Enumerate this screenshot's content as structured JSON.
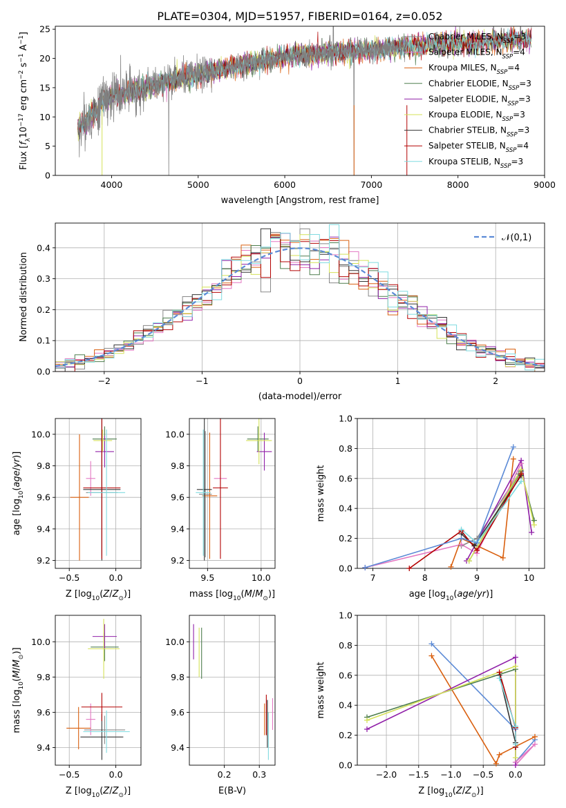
{
  "figure": {
    "title": "PLATE=0304, MJD=51957, FIBERID=0164, z=0.052"
  },
  "palette": {
    "Chabrier MILES": "#888888",
    "Salpeter MILES": "#e377c2",
    "Kroupa MILES": "#d95f0e",
    "Chabrier ELODIE": "#4d7d4d",
    "Salpeter ELODIE": "#9020a8",
    "Kroupa ELODIE": "#d4e157",
    "Chabrier STELIB": "#333333",
    "Salpeter STELIB": "#b30000",
    "Kroupa STELIB": "#7fdbe0",
    "normal": "#5b8ad6"
  },
  "models": [
    {
      "label_main": "Chabrier MILES, N",
      "sub": "SSP",
      "nssp": "=3",
      "key": "Chabrier MILES"
    },
    {
      "label_main": "Salpeter MILES, N",
      "sub": "SSP",
      "nssp": "=4",
      "key": "Salpeter MILES"
    },
    {
      "label_main": "Kroupa MILES, N",
      "sub": "SSP",
      "nssp": "=4",
      "key": "Kroupa MILES"
    },
    {
      "label_main": "Chabrier ELODIE, N",
      "sub": "SSP",
      "nssp": "=3",
      "key": "Chabrier ELODIE"
    },
    {
      "label_main": "Salpeter ELODIE, N",
      "sub": "SSP",
      "nssp": "=3",
      "key": "Salpeter ELODIE"
    },
    {
      "label_main": "Kroupa ELODIE, N",
      "sub": "SSP",
      "nssp": "=3",
      "key": "Kroupa ELODIE"
    },
    {
      "label_main": "Chabrier STELIB, N",
      "sub": "SSP",
      "nssp": "=3",
      "key": "Chabrier STELIB"
    },
    {
      "label_main": "Salpeter STELIB, N",
      "sub": "SSP",
      "nssp": "=4",
      "key": "Salpeter STELIB"
    },
    {
      "label_main": "Kroupa STELIB, N",
      "sub": "SSP",
      "nssp": "=3",
      "key": "Kroupa STELIB"
    }
  ],
  "chart_data": [
    {
      "id": "spectrum",
      "type": "line",
      "xlabel": "wavelength [Angstrom, rest frame]",
      "ylabel": "Flux [f_λ10^-17 erg cm^-2 s^-1 A^-1]",
      "xlim": [
        3350,
        9000
      ],
      "ylim": [
        0,
        25.5
      ],
      "xticks": [
        4000,
        5000,
        6000,
        7000,
        8000,
        9000
      ],
      "yticks": [
        0,
        5,
        10,
        15,
        20,
        25
      ],
      "grid": false,
      "legend": "top-right",
      "spectrum_range": [
        3610,
        7420
      ],
      "continuum_nodes": [
        [
          3610,
          8.2
        ],
        [
          3800,
          10.5
        ],
        [
          3900,
          12.8
        ],
        [
          4000,
          13.6
        ],
        [
          4200,
          14.2
        ],
        [
          4500,
          15.5
        ],
        [
          5000,
          17.2
        ],
        [
          5500,
          19.0
        ],
        [
          6000,
          20.3
        ],
        [
          6500,
          21.0
        ],
        [
          7000,
          21.4
        ],
        [
          7400,
          22.0
        ]
      ],
      "model_range": [
        3610,
        8850
      ],
      "model_tail_nodes": [
        [
          7400,
          22.0
        ],
        [
          8000,
          22.6
        ],
        [
          8500,
          23.0
        ],
        [
          8850,
          23.2
        ]
      ]
    },
    {
      "id": "residuals",
      "type": "line",
      "xlabel": "(data-model)/error",
      "ylabel": "Normed distribution",
      "xlim": [
        -2.5,
        2.5
      ],
      "ylim": [
        0,
        0.48
      ],
      "xticks": [
        -2,
        -1,
        0,
        1,
        2
      ],
      "yticks": [
        0.0,
        0.1,
        0.2,
        0.3,
        0.4
      ],
      "grid": true,
      "legend": "top-right",
      "normal_label": "𝒩(0,1)",
      "bin_width": 0.1
    },
    {
      "id": "age_vs_Z",
      "type": "scatter",
      "xlabel": "Z [log10(Z/Z⊙)]",
      "ylabel": "age [log10(age/yr)]",
      "xlim": [
        -0.65,
        0.27
      ],
      "ylim": [
        9.15,
        10.1
      ],
      "xticks": [
        -0.5,
        0.0
      ],
      "yticks": [
        9.2,
        9.4,
        9.6,
        9.8,
        10.0
      ],
      "grid": true,
      "crosses": [
        {
          "model": "Chabrier MILES",
          "x": -0.15,
          "y": 9.63,
          "dx": 0.17,
          "dy": 0.4
        },
        {
          "model": "Salpeter MILES",
          "x": -0.27,
          "y": 9.72,
          "dx": 0.05,
          "dy": 0.11
        },
        {
          "model": "Kroupa MILES",
          "x": -0.39,
          "y": 9.6,
          "dx": 0.1,
          "dy": 0.4
        },
        {
          "model": "Chabrier ELODIE",
          "x": -0.12,
          "y": 9.97,
          "dx": 0.13,
          "dy": 0.08
        },
        {
          "model": "Salpeter ELODIE",
          "x": -0.12,
          "y": 9.89,
          "dx": 0.1,
          "dy": 0.1
        },
        {
          "model": "Kroupa ELODIE",
          "x": -0.14,
          "y": 9.96,
          "dx": 0.1,
          "dy": 0.07
        },
        {
          "model": "Chabrier STELIB",
          "x": -0.15,
          "y": 9.65,
          "dx": 0.2,
          "dy": 0.45
        },
        {
          "model": "Salpeter STELIB",
          "x": -0.15,
          "y": 9.66,
          "dx": 0.2,
          "dy": 0.45
        },
        {
          "model": "Kroupa STELIB",
          "x": -0.1,
          "y": 9.63,
          "dx": 0.2,
          "dy": 0.4
        }
      ]
    },
    {
      "id": "age_vs_mass",
      "type": "scatter",
      "xlabel": "mass [log10(M/M⊙)]",
      "ylabel": "",
      "xlim": [
        9.33,
        10.13
      ],
      "ylim": [
        9.15,
        10.1
      ],
      "xticks": [
        9.5,
        10.0
      ],
      "yticks": [
        9.2,
        9.4,
        9.6,
        9.8,
        10.0
      ],
      "grid": true,
      "crosses": [
        {
          "model": "Chabrier MILES",
          "x": 9.48,
          "y": 9.62,
          "dx": 0.06,
          "dy": 0.4
        },
        {
          "model": "Salpeter MILES",
          "x": 9.62,
          "y": 9.72,
          "dx": 0.06,
          "dy": 0.12
        },
        {
          "model": "Kroupa MILES",
          "x": 9.52,
          "y": 9.61,
          "dx": 0.07,
          "dy": 0.4
        },
        {
          "model": "Chabrier ELODIE",
          "x": 9.97,
          "y": 9.97,
          "dx": 0.1,
          "dy": 0.08
        },
        {
          "model": "Salpeter ELODIE",
          "x": 10.03,
          "y": 9.89,
          "dx": 0.07,
          "dy": 0.12
        },
        {
          "model": "Kroupa ELODIE",
          "x": 9.98,
          "y": 9.96,
          "dx": 0.12,
          "dy": 0.15
        },
        {
          "model": "Chabrier STELIB",
          "x": 9.47,
          "y": 9.65,
          "dx": 0.07,
          "dy": 0.45
        },
        {
          "model": "Salpeter STELIB",
          "x": 9.62,
          "y": 9.66,
          "dx": 0.07,
          "dy": 0.45
        },
        {
          "model": "Kroupa STELIB",
          "x": 9.46,
          "y": 9.63,
          "dx": 0.07,
          "dy": 0.4
        }
      ]
    },
    {
      "id": "weight_vs_age",
      "type": "line",
      "xlabel": "age [log10(age/yr)]",
      "ylabel": "mass weight",
      "xlim": [
        6.7,
        10.3
      ],
      "ylim": [
        0,
        1.0
      ],
      "xticks": [
        7,
        8,
        9,
        10
      ],
      "yticks": [
        0.0,
        0.2,
        0.4,
        0.6,
        0.8,
        1.0
      ],
      "grid": true,
      "series": [
        {
          "model": "Chabrier MILES",
          "x": [
            8.7,
            9.0,
            9.8
          ],
          "y": [
            0.15,
            0.2,
            0.63
          ]
        },
        {
          "model": "Salpeter MILES",
          "x": [
            6.85,
            8.7,
            9.0,
            9.85
          ],
          "y": [
            0.005,
            0.16,
            0.1,
            0.7
          ]
        },
        {
          "model": "Kroupa MILES",
          "x": [
            8.5,
            8.7,
            9.5,
            9.7
          ],
          "y": [
            0.01,
            0.2,
            0.07,
            0.73
          ]
        },
        {
          "model": "Chabrier ELODIE",
          "x": [
            8.85,
            9.85,
            10.1
          ],
          "y": [
            0.05,
            0.65,
            0.32
          ]
        },
        {
          "model": "Salpeter ELODIE",
          "x": [
            8.8,
            9.85,
            10.05
          ],
          "y": [
            0.05,
            0.72,
            0.24
          ]
        },
        {
          "model": "Kroupa ELODIE",
          "x": [
            8.85,
            9.85,
            10.1
          ],
          "y": [
            0.05,
            0.66,
            0.29
          ]
        },
        {
          "model": "Chabrier STELIB",
          "x": [
            8.7,
            8.95,
            9.85
          ],
          "y": [
            0.23,
            0.15,
            0.62
          ]
        },
        {
          "model": "Salpeter STELIB",
          "x": [
            7.7,
            8.7,
            9.0,
            9.85
          ],
          "y": [
            0.0,
            0.25,
            0.12,
            0.63
          ]
        },
        {
          "model": "Kroupa STELIB",
          "x": [
            8.7,
            9.0,
            9.85
          ],
          "y": [
            0.26,
            0.17,
            0.58
          ]
        },
        {
          "model": "normal",
          "x": [
            6.85,
            8.7,
            9.0,
            9.7
          ],
          "y": [
            0.005,
            0.2,
            0.17,
            0.81
          ]
        }
      ]
    },
    {
      "id": "mass_vs_Z",
      "type": "scatter",
      "xlabel": "Z [log10(Z/Z⊙)]",
      "ylabel": "mass [log10(M/M⊙)]",
      "xlim": [
        -0.65,
        0.27
      ],
      "ylim": [
        9.3,
        10.15
      ],
      "xticks": [
        -0.5,
        0.0
      ],
      "yticks": [
        9.4,
        9.6,
        9.8,
        10.0
      ],
      "grid": true,
      "crosses": [
        {
          "model": "Chabrier MILES",
          "x": -0.12,
          "y": 9.5,
          "dx": 0.22,
          "dy": 0.08
        },
        {
          "model": "Salpeter MILES",
          "x": -0.27,
          "y": 9.56,
          "dx": 0.05,
          "dy": 0.09
        },
        {
          "model": "Kroupa MILES",
          "x": -0.4,
          "y": 9.51,
          "dx": 0.13,
          "dy": 0.12
        },
        {
          "model": "Chabrier ELODIE",
          "x": -0.12,
          "y": 9.97,
          "dx": 0.15,
          "dy": 0.08
        },
        {
          "model": "Salpeter ELODIE",
          "x": -0.12,
          "y": 10.03,
          "dx": 0.13,
          "dy": 0.07
        },
        {
          "model": "Kroupa ELODIE",
          "x": -0.13,
          "y": 9.96,
          "dx": 0.17,
          "dy": 0.17
        },
        {
          "model": "Chabrier STELIB",
          "x": -0.15,
          "y": 9.46,
          "dx": 0.23,
          "dy": 0.13
        },
        {
          "model": "Salpeter STELIB",
          "x": -0.15,
          "y": 9.63,
          "dx": 0.22,
          "dy": 0.08
        },
        {
          "model": "Kroupa STELIB",
          "x": -0.1,
          "y": 9.49,
          "dx": 0.25,
          "dy": 0.12
        }
      ]
    },
    {
      "id": "mass_vs_ebv",
      "type": "scatter",
      "xlabel": "E(B-V)",
      "ylabel": "",
      "xlim": [
        0.1,
        0.345
      ],
      "ylim": [
        9.3,
        10.15
      ],
      "xticks": [
        0.2,
        0.3
      ],
      "yticks": [
        9.4,
        9.6,
        9.8,
        10.0
      ],
      "grid": true,
      "vlines": [
        {
          "model": "Salpeter ELODIE",
          "x": 0.112,
          "y0": 9.9,
          "y1": 10.1
        },
        {
          "model": "Kroupa ELODIE",
          "x": 0.128,
          "y0": 9.8,
          "y1": 10.08
        },
        {
          "model": "Chabrier ELODIE",
          "x": 0.135,
          "y0": 9.79,
          "y1": 10.08
        },
        {
          "model": "Kroupa MILES",
          "x": 0.315,
          "y0": 9.47,
          "y1": 9.65
        },
        {
          "model": "Salpeter STELIB",
          "x": 0.32,
          "y0": 9.47,
          "y1": 9.7
        },
        {
          "model": "Chabrier STELIB",
          "x": 0.323,
          "y0": 9.4,
          "y1": 9.67
        },
        {
          "model": "Kroupa STELIB",
          "x": 0.326,
          "y0": 9.33,
          "y1": 9.6
        },
        {
          "model": "Salpeter MILES",
          "x": 0.338,
          "y0": 9.5,
          "y1": 9.68
        }
      ]
    },
    {
      "id": "weight_vs_Z",
      "type": "line",
      "xlabel": "Z [log10(Z/Z⊙)]",
      "ylabel": "mass weight",
      "xlim": [
        -2.45,
        0.45
      ],
      "ylim": [
        0,
        1.0
      ],
      "xticks": [
        -2.0,
        -1.5,
        -1.0,
        -0.5,
        0.0
      ],
      "yticks": [
        0.0,
        0.2,
        0.4,
        0.6,
        0.8,
        1.0
      ],
      "grid": true,
      "series": [
        {
          "model": "normal",
          "x": [
            -1.3,
            0.0,
            0.0,
            0.3
          ],
          "y": [
            0.81,
            0.24,
            0.02,
            0.17
          ]
        },
        {
          "model": "Kroupa MILES",
          "x": [
            -1.3,
            -0.3,
            -0.25,
            0.3
          ],
          "y": [
            0.73,
            0.01,
            0.07,
            0.19
          ]
        },
        {
          "model": "Salpeter MILES",
          "x": [
            0.0,
            0.3,
            0.0
          ],
          "y": [
            0.0,
            0.14,
            0.02
          ]
        },
        {
          "model": "Chabrier ELODIE",
          "x": [
            -2.3,
            0.0,
            0.0
          ],
          "y": [
            0.32,
            0.64,
            0.26
          ]
        },
        {
          "model": "Salpeter ELODIE",
          "x": [
            -2.3,
            0.0,
            0.0
          ],
          "y": [
            0.24,
            0.72,
            0.0
          ]
        },
        {
          "model": "Kroupa ELODIE",
          "x": [
            -2.3,
            0.0,
            0.0
          ],
          "y": [
            0.3,
            0.66,
            0.05
          ]
        },
        {
          "model": "Chabrier STELIB",
          "x": [
            -0.25,
            0.0,
            0.0
          ],
          "y": [
            0.6,
            0.15,
            0.12
          ]
        },
        {
          "model": "Salpeter STELIB",
          "x": [
            -0.25,
            0.0,
            0.0
          ],
          "y": [
            0.62,
            0.25,
            0.12
          ]
        },
        {
          "model": "Kroupa STELIB",
          "x": [
            -0.25,
            0.0,
            0.0
          ],
          "y": [
            0.58,
            0.26,
            0.14
          ]
        }
      ]
    }
  ]
}
